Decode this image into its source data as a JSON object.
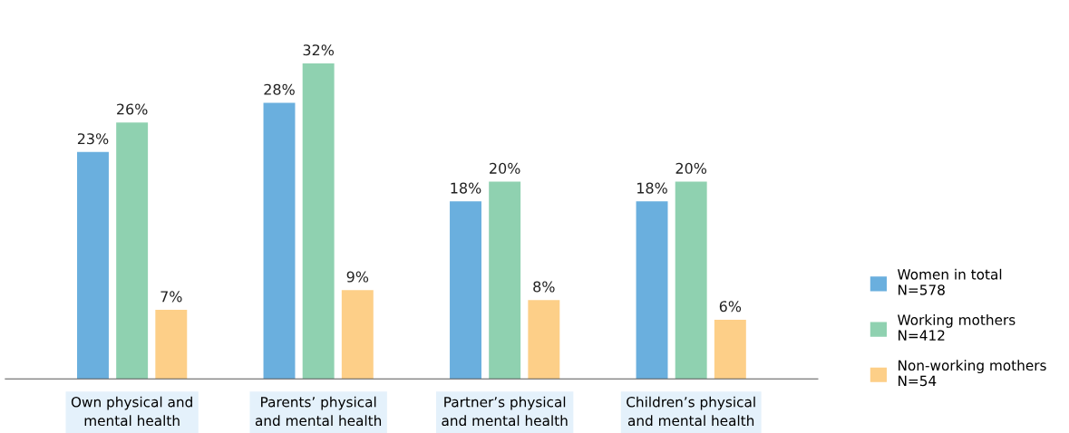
{
  "chart_data": {
    "type": "bar",
    "categories": [
      "Own physical and\nmental health",
      "Parents’ physical\nand mental health",
      "Partner’s physical\nand mental health",
      "Children’s physical\nand mental health"
    ],
    "series": [
      {
        "name": "Women in total",
        "color": "#6aafde",
        "values": [
          23,
          28,
          18,
          18
        ],
        "value_labels": [
          "23%",
          "28%",
          "18%",
          "18%"
        ]
      },
      {
        "name": "Working mothers",
        "color": "#8fd1b0",
        "values": [
          26,
          32,
          20,
          20
        ],
        "value_labels": [
          "26%",
          "32%",
          "20%",
          "20%"
        ]
      },
      {
        "name": "Non-working mothers",
        "color": "#fdcf88",
        "values": [
          7,
          9,
          8,
          6
        ],
        "value_labels": [
          "7%",
          "9%",
          "8%",
          "6%"
        ]
      }
    ],
    "annotations": [
      "N=578",
      "N=412",
      "N=54"
    ],
    "legend": "bottom right",
    "grid": false
  }
}
